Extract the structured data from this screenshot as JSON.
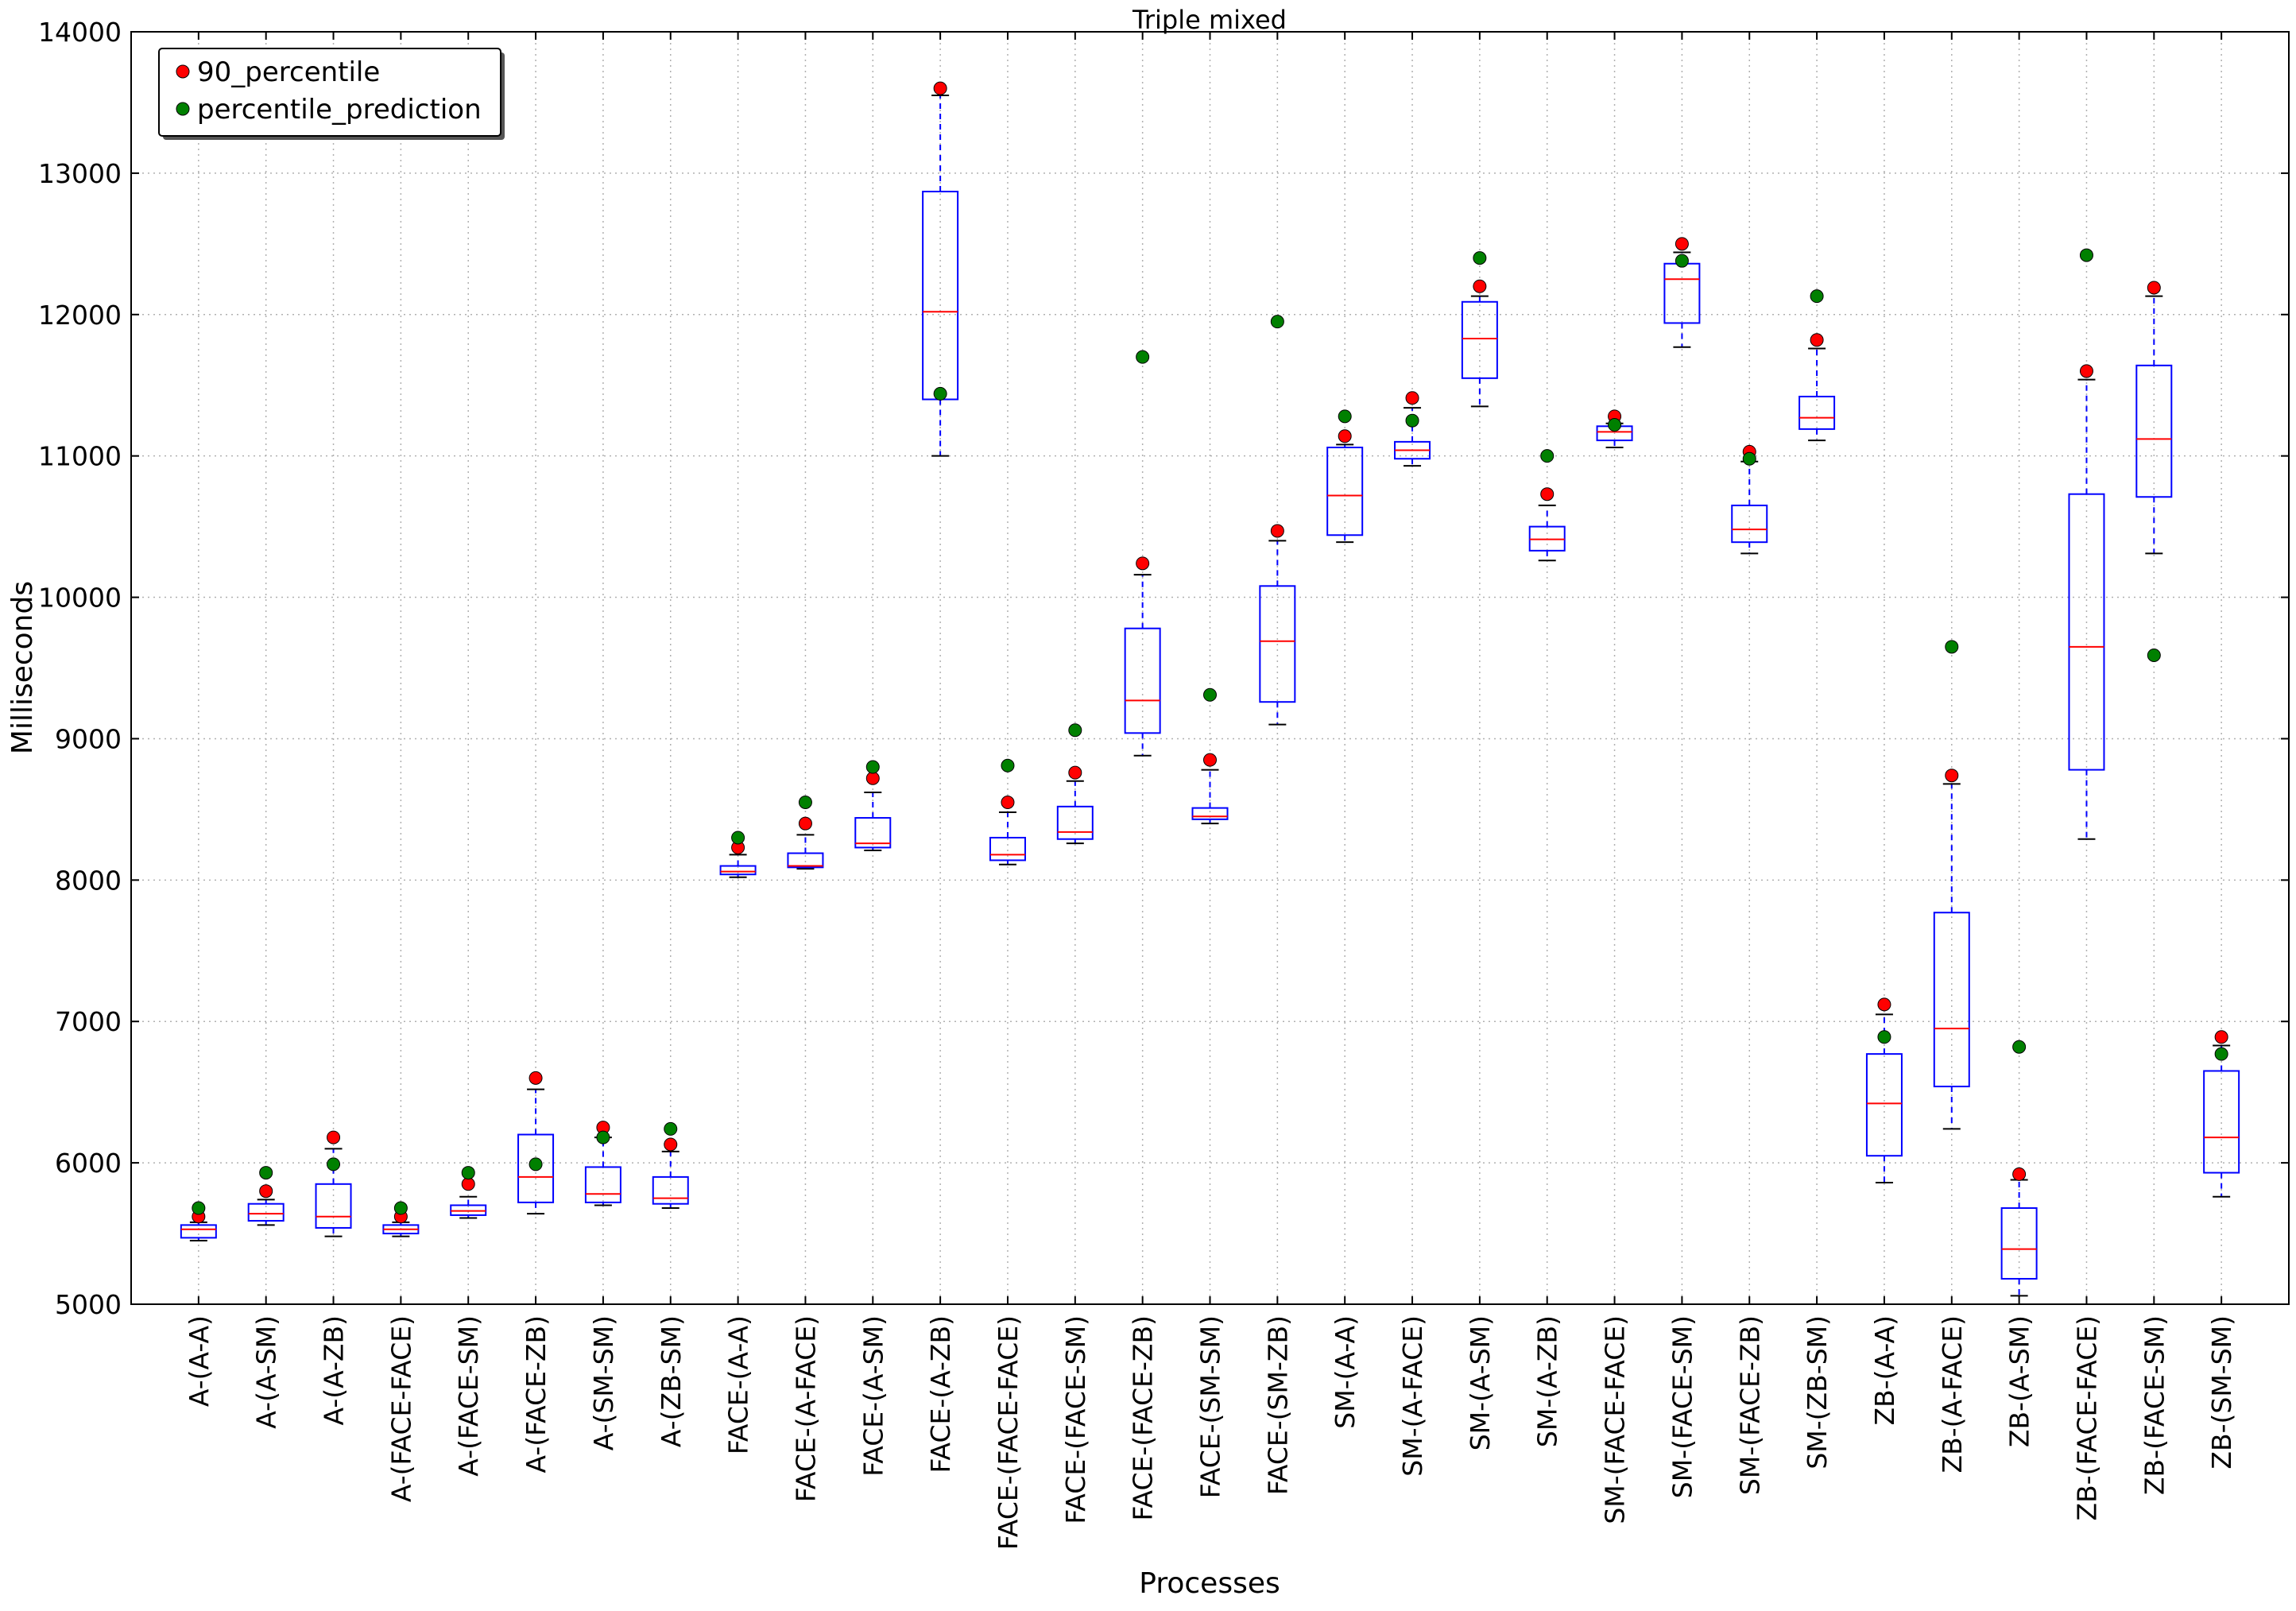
{
  "chart_data": {
    "type": "box",
    "title": "Triple mixed",
    "xlabel": "Processes",
    "ylabel": "Milliseconds",
    "ylim": [
      5000,
      14000
    ],
    "yticks": [
      5000,
      6000,
      7000,
      8000,
      9000,
      10000,
      11000,
      12000,
      13000,
      14000
    ],
    "grid": true,
    "legend": {
      "position": "top-left",
      "entries": [
        {
          "label": "90_percentile",
          "color": "#ff0000"
        },
        {
          "label": "percentile_prediction",
          "color": "#008000"
        }
      ]
    },
    "colors": {
      "box": "#0000ff",
      "median": "#ff0000",
      "cap": "#000000",
      "p90": "#ff0000",
      "prediction": "#008000",
      "grid": "#b0b0b0"
    },
    "categories": [
      "A-(A-A)",
      "A-(A-SM)",
      "A-(A-ZB)",
      "A-(FACE-FACE)",
      "A-(FACE-SM)",
      "A-(FACE-ZB)",
      "A-(SM-SM)",
      "A-(ZB-SM)",
      "FACE-(A-A)",
      "FACE-(A-FACE)",
      "FACE-(A-SM)",
      "FACE-(A-ZB)",
      "FACE-(FACE-FACE)",
      "FACE-(FACE-SM)",
      "FACE-(FACE-ZB)",
      "FACE-(SM-SM)",
      "FACE-(SM-ZB)",
      "SM-(A-A)",
      "SM-(A-FACE)",
      "SM-(A-SM)",
      "SM-(A-ZB)",
      "SM-(FACE-FACE)",
      "SM-(FACE-SM)",
      "SM-(FACE-ZB)",
      "SM-(ZB-SM)",
      "ZB-(A-A)",
      "ZB-(A-FACE)",
      "ZB-(A-SM)",
      "ZB-(FACE-FACE)",
      "ZB-(FACE-SM)",
      "ZB-(SM-SM)"
    ],
    "boxes": [
      {
        "whislo": 5450,
        "q1": 5470,
        "med": 5530,
        "q3": 5560,
        "whishi": 5580,
        "p90": 5620,
        "pred": 5680
      },
      {
        "whislo": 5560,
        "q1": 5590,
        "med": 5640,
        "q3": 5710,
        "whishi": 5740,
        "p90": 5800,
        "pred": 5930
      },
      {
        "whislo": 5480,
        "q1": 5540,
        "med": 5620,
        "q3": 5850,
        "whishi": 6100,
        "p90": 6180,
        "pred": 5990
      },
      {
        "whislo": 5480,
        "q1": 5500,
        "med": 5530,
        "q3": 5560,
        "whishi": 5580,
        "p90": 5620,
        "pred": 5680
      },
      {
        "whislo": 5610,
        "q1": 5630,
        "med": 5660,
        "q3": 5700,
        "whishi": 5760,
        "p90": 5850,
        "pred": 5930
      },
      {
        "whislo": 5640,
        "q1": 5720,
        "med": 5900,
        "q3": 6200,
        "whishi": 6520,
        "p90": 6600,
        "pred": 5990
      },
      {
        "whislo": 5700,
        "q1": 5720,
        "med": 5780,
        "q3": 5970,
        "whishi": 6180,
        "p90": 6250,
        "pred": 6180
      },
      {
        "whislo": 5680,
        "q1": 5710,
        "med": 5750,
        "q3": 5900,
        "whishi": 6080,
        "p90": 6130,
        "pred": 6240
      },
      {
        "whislo": 8020,
        "q1": 8040,
        "med": 8060,
        "q3": 8100,
        "whishi": 8180,
        "p90": 8230,
        "pred": 8300
      },
      {
        "whislo": 8080,
        "q1": 8090,
        "med": 8100,
        "q3": 8190,
        "whishi": 8320,
        "p90": 8400,
        "pred": 8550
      },
      {
        "whislo": 8210,
        "q1": 8230,
        "med": 8260,
        "q3": 8440,
        "whishi": 8620,
        "p90": 8720,
        "pred": 8800
      },
      {
        "whislo": 11000,
        "q1": 11400,
        "med": 12020,
        "q3": 12870,
        "whishi": 13550,
        "p90": 13600,
        "pred": 11440
      },
      {
        "whislo": 8110,
        "q1": 8140,
        "med": 8180,
        "q3": 8300,
        "whishi": 8480,
        "p90": 8550,
        "pred": 8810
      },
      {
        "whislo": 8260,
        "q1": 8290,
        "med": 8340,
        "q3": 8520,
        "whishi": 8700,
        "p90": 8760,
        "pred": 9060
      },
      {
        "whislo": 8880,
        "q1": 9040,
        "med": 9270,
        "q3": 9780,
        "whishi": 10160,
        "p90": 10240,
        "pred": 11700
      },
      {
        "whislo": 8400,
        "q1": 8430,
        "med": 8450,
        "q3": 8510,
        "whishi": 8780,
        "p90": 8850,
        "pred": 9310
      },
      {
        "whislo": 9100,
        "q1": 9260,
        "med": 9690,
        "q3": 10080,
        "whishi": 10400,
        "p90": 10470,
        "pred": 11950
      },
      {
        "whislo": 10390,
        "q1": 10440,
        "med": 10720,
        "q3": 11060,
        "whishi": 11080,
        "p90": 11140,
        "pred": 11280
      },
      {
        "whislo": 10930,
        "q1": 10980,
        "med": 11040,
        "q3": 11100,
        "whishi": 11340,
        "p90": 11410,
        "pred": 11250
      },
      {
        "whislo": 11350,
        "q1": 11550,
        "med": 11830,
        "q3": 12090,
        "whishi": 12130,
        "p90": 12200,
        "pred": 12400
      },
      {
        "whislo": 10260,
        "q1": 10330,
        "med": 10410,
        "q3": 10500,
        "whishi": 10650,
        "p90": 10730,
        "pred": 11000
      },
      {
        "whislo": 11060,
        "q1": 11110,
        "med": 11170,
        "q3": 11210,
        "whishi": 11230,
        "p90": 11280,
        "pred": 11220
      },
      {
        "whislo": 11770,
        "q1": 11940,
        "med": 12250,
        "q3": 12360,
        "whishi": 12440,
        "p90": 12500,
        "pred": 12380
      },
      {
        "whislo": 10310,
        "q1": 10390,
        "med": 10480,
        "q3": 10650,
        "whishi": 10960,
        "p90": 11030,
        "pred": 10980
      },
      {
        "whislo": 11110,
        "q1": 11190,
        "med": 11270,
        "q3": 11420,
        "whishi": 11760,
        "p90": 11820,
        "pred": 12130
      },
      {
        "whislo": 5860,
        "q1": 6050,
        "med": 6420,
        "q3": 6770,
        "whishi": 7050,
        "p90": 7120,
        "pred": 6890
      },
      {
        "whislo": 6240,
        "q1": 6540,
        "med": 6950,
        "q3": 7770,
        "whishi": 8680,
        "p90": 8740,
        "pred": 9650
      },
      {
        "whislo": 5060,
        "q1": 5180,
        "med": 5390,
        "q3": 5680,
        "whishi": 5880,
        "p90": 5920,
        "pred": 6820
      },
      {
        "whislo": 8290,
        "q1": 8780,
        "med": 9650,
        "q3": 10730,
        "whishi": 11540,
        "p90": 11600,
        "pred": 12420
      },
      {
        "whislo": 10310,
        "q1": 10710,
        "med": 11120,
        "q3": 11640,
        "whishi": 12130,
        "p90": 12190,
        "pred": 9590
      },
      {
        "whislo": 5760,
        "q1": 5930,
        "med": 6180,
        "q3": 6650,
        "whishi": 6830,
        "p90": 6890,
        "pred": 6770
      }
    ]
  }
}
